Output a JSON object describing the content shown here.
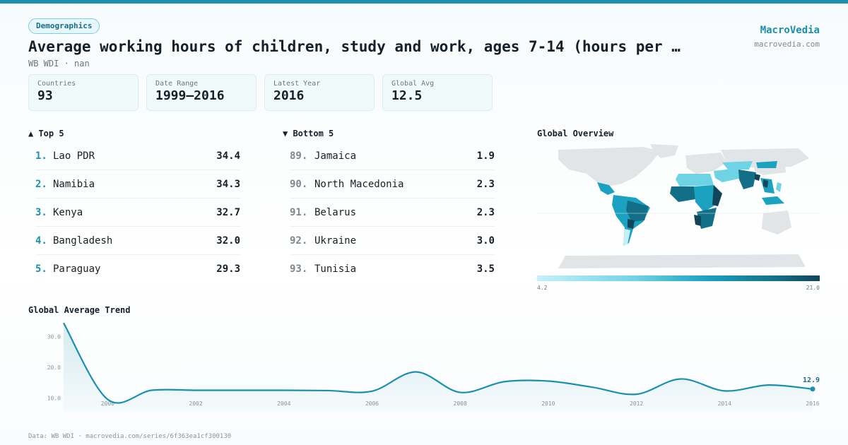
{
  "header": {
    "tag": "Demographics",
    "title": "Average working hours of children, study and work, ages 7-14 (hours per …",
    "subtitle": "WB WDI · nan",
    "brand": "MacroVedia",
    "brand_url": "macrovedia.com"
  },
  "stats": [
    {
      "label": "Countries",
      "value": "93"
    },
    {
      "label": "Date Range",
      "value": "1999–2016"
    },
    {
      "label": "Latest Year",
      "value": "2016"
    },
    {
      "label": "Global Avg",
      "value": "12.5"
    }
  ],
  "top5": {
    "heading": "▲ Top 5",
    "items": [
      {
        "rank": "1.",
        "name": "Lao PDR",
        "value": "34.4"
      },
      {
        "rank": "2.",
        "name": "Namibia",
        "value": "34.3"
      },
      {
        "rank": "3.",
        "name": "Kenya",
        "value": "32.7"
      },
      {
        "rank": "4.",
        "name": "Bangladesh",
        "value": "32.0"
      },
      {
        "rank": "5.",
        "name": "Paraguay",
        "value": "29.3"
      }
    ]
  },
  "bottom5": {
    "heading": "▼ Bottom 5",
    "items": [
      {
        "rank": "89.",
        "name": "Jamaica",
        "value": "1.9"
      },
      {
        "rank": "90.",
        "name": "North Macedonia",
        "value": "2.3"
      },
      {
        "rank": "91.",
        "name": "Belarus",
        "value": "2.3"
      },
      {
        "rank": "92.",
        "name": "Ukraine",
        "value": "3.0"
      },
      {
        "rank": "93.",
        "name": "Tunisia",
        "value": "3.5"
      }
    ]
  },
  "map": {
    "heading": "Global Overview",
    "legend_min": "4.2",
    "legend_max": "21.0",
    "colors": {
      "low": "#c6f0f8",
      "mid": "#1aa2c0",
      "high": "#12455a",
      "nodata": "#e2e5e8"
    }
  },
  "chart_data": {
    "type": "line",
    "title": "Global Average Trend",
    "x": [
      1999,
      2000,
      2001,
      2002,
      2003,
      2004,
      2005,
      2006,
      2007,
      2008,
      2009,
      2010,
      2011,
      2012,
      2013,
      2014,
      2015,
      2016
    ],
    "values": [
      34.5,
      9.5,
      12.5,
      12.5,
      12.5,
      12.5,
      12.4,
      12.2,
      18.5,
      11.8,
      15.3,
      15.5,
      13.5,
      11.2,
      16.2,
      12.3,
      14.2,
      12.9
    ],
    "xticks": [
      "2000",
      "2002",
      "2004",
      "2006",
      "2008",
      "2010",
      "2012",
      "2014",
      "2016"
    ],
    "yticks": [
      "10.0",
      "20.0",
      "30.0"
    ],
    "ylim": [
      5,
      35
    ],
    "last_label": "12.9",
    "line_color": "#1a90ae",
    "grid": false
  },
  "footer": "Data: WB WDI · macrovedia.com/series/6f363ea1cf300130"
}
